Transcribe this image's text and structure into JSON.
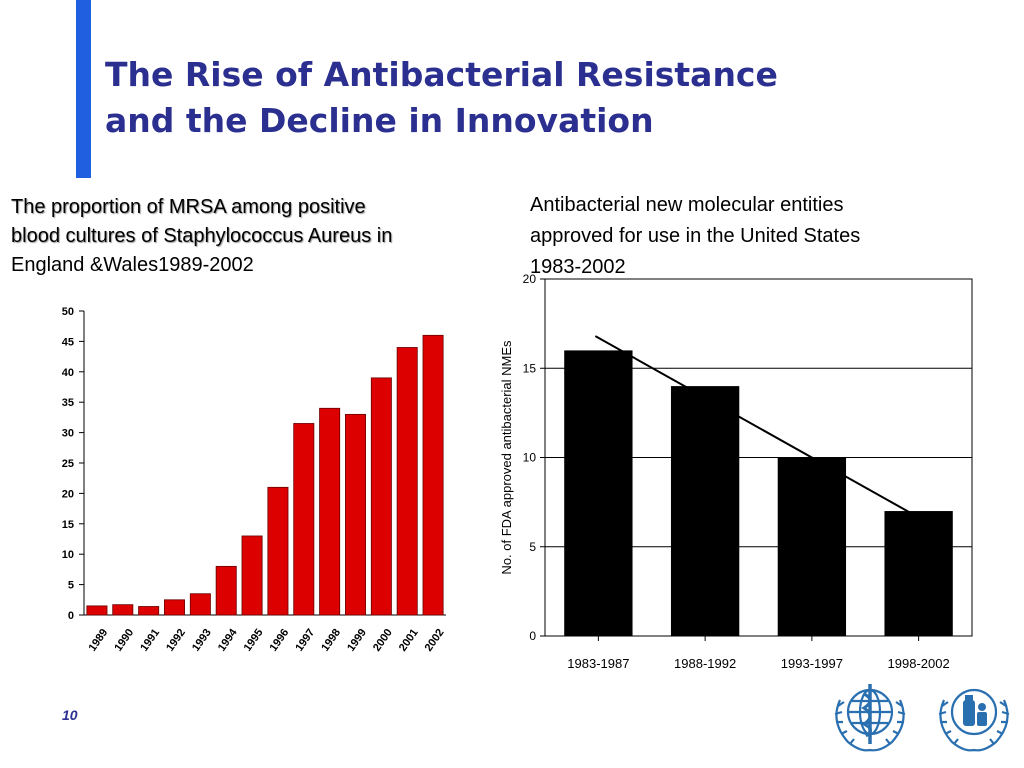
{
  "slide": {
    "title_line1": "The Rise of Antibacterial Resistance",
    "title_line2": "and the Decline in Innovation",
    "left_caption_line1": "The proportion of MRSA among positive",
    "left_caption_line2": "blood cultures of Staphylococcus Aureus in",
    "left_caption_line3": "England &Wales1989-2002",
    "right_caption_line1": "Antibacterial new molecular entities",
    "right_caption_line2": "approved for use in the United States",
    "right_caption_line3": "1983-2002",
    "slide_number": "10",
    "logos": [
      "who-emblem-icon",
      "who-emblem-medicine-icon"
    ]
  },
  "colors": {
    "accent": "#1f5fe0",
    "title": "#2b2f8f",
    "mrsa_bar": "#dd0000",
    "nme_bar": "#000000",
    "logo": "#2a6fb0"
  },
  "chart_data": [
    {
      "type": "bar",
      "title": "",
      "xlabel": "",
      "ylabel": "",
      "categories": [
        "1989",
        "1990",
        "1991",
        "1992",
        "1993",
        "1994",
        "1995",
        "1996",
        "1997",
        "1998",
        "1999",
        "2000",
        "2001",
        "2002"
      ],
      "values": [
        1.5,
        1.7,
        1.4,
        2.5,
        3.5,
        8,
        13,
        21,
        31.5,
        34,
        33,
        39,
        44,
        46
      ],
      "ylim": [
        0,
        50
      ],
      "yticks": [
        0,
        5,
        10,
        15,
        20,
        25,
        30,
        35,
        40,
        45,
        50
      ],
      "grid": false
    },
    {
      "type": "bar",
      "title": "",
      "xlabel": "",
      "ylabel": "No. of FDA approved antibacterial NMEs",
      "categories": [
        "1983-1987",
        "1988-1992",
        "1993-1997",
        "1998-2002"
      ],
      "values": [
        16,
        14,
        10,
        7
      ],
      "ylim": [
        0,
        20
      ],
      "yticks": [
        0,
        5,
        10,
        15,
        20
      ],
      "grid": true,
      "trendline": [
        16.8,
        6.8
      ]
    }
  ]
}
